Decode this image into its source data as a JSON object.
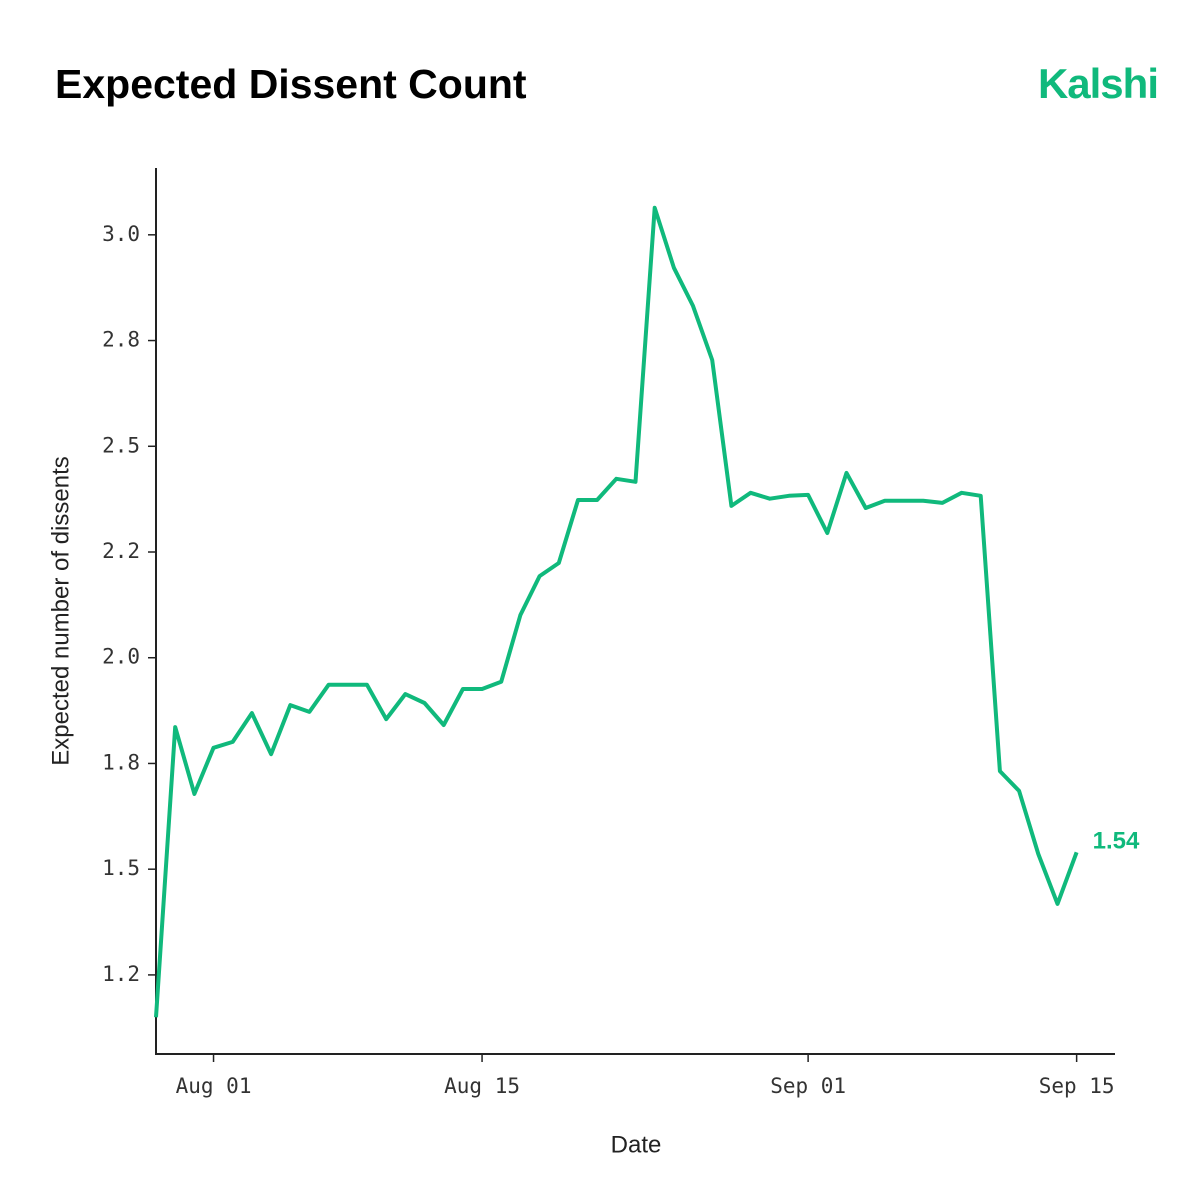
{
  "brand": "Kalshi",
  "chart_data": {
    "type": "line",
    "title": "Expected Dissent Count",
    "x_label": "Date",
    "y_label": "Expected number of dissents",
    "x": [
      "Jul 29",
      "Jul 30",
      "Jul 31",
      "Aug 01",
      "Aug 02",
      "Aug 03",
      "Aug 04",
      "Aug 05",
      "Aug 06",
      "Aug 07",
      "Aug 08",
      "Aug 09",
      "Aug 10",
      "Aug 11",
      "Aug 12",
      "Aug 13",
      "Aug 14",
      "Aug 15",
      "Aug 16",
      "Aug 17",
      "Aug 18",
      "Aug 19",
      "Aug 20",
      "Aug 21",
      "Aug 22",
      "Aug 23",
      "Aug 24",
      "Aug 25",
      "Aug 26",
      "Aug 27",
      "Aug 28",
      "Aug 29",
      "Aug 30",
      "Aug 31",
      "Sep 01",
      "Sep 02",
      "Sep 03",
      "Sep 04",
      "Sep 05",
      "Sep 06",
      "Sep 07",
      "Sep 08",
      "Sep 09",
      "Sep 10",
      "Sep 11",
      "Sep 12",
      "Sep 13",
      "Sep 14",
      "Sep 15"
    ],
    "series": [
      {
        "name": "Expected number of dissents",
        "color": "#10b97c",
        "values": [
          1.15,
          1.836,
          1.678,
          1.787,
          1.801,
          1.869,
          1.772,
          1.888,
          1.872,
          1.936,
          1.936,
          1.936,
          1.855,
          1.914,
          1.893,
          1.841,
          1.926,
          1.926,
          1.943,
          2.101,
          2.193,
          2.224,
          2.373,
          2.373,
          2.423,
          2.416,
          3.064,
          2.922,
          2.832,
          2.704,
          2.359,
          2.39,
          2.376,
          2.383,
          2.385,
          2.295,
          2.437,
          2.354,
          2.371,
          2.371,
          2.371,
          2.366,
          2.39,
          2.383,
          1.732,
          1.685,
          1.536,
          1.418,
          1.54
        ],
        "value_labels": [
          null,
          null,
          null,
          null,
          null,
          null,
          null,
          null,
          null,
          null,
          null,
          null,
          null,
          null,
          null,
          null,
          null,
          null,
          null,
          null,
          null,
          null,
          null,
          null,
          null,
          null,
          null,
          null,
          null,
          null,
          null,
          null,
          null,
          null,
          null,
          null,
          null,
          null,
          null,
          null,
          null,
          null,
          null,
          null,
          null,
          null,
          null,
          null,
          "1.54"
        ]
      }
    ],
    "xlim": [
      "Jul 29",
      "Sep 17"
    ],
    "xticks": [
      "Aug 01",
      "Aug 15",
      "Sep 01",
      "Sep 15"
    ],
    "ylim": [
      1.063,
      3.158
    ],
    "yticks": [
      {
        "value": 1.25,
        "label": "1.2"
      },
      1.5,
      {
        "value": 1.75,
        "label": "1.8"
      },
      {
        "value": 2,
        "label": "2.0"
      },
      {
        "value": 2.25,
        "label": "2.2"
      },
      2.5,
      {
        "value": 2.75,
        "label": "2.8"
      },
      {
        "value": 3,
        "label": "3.0"
      }
    ],
    "grid": false
  }
}
